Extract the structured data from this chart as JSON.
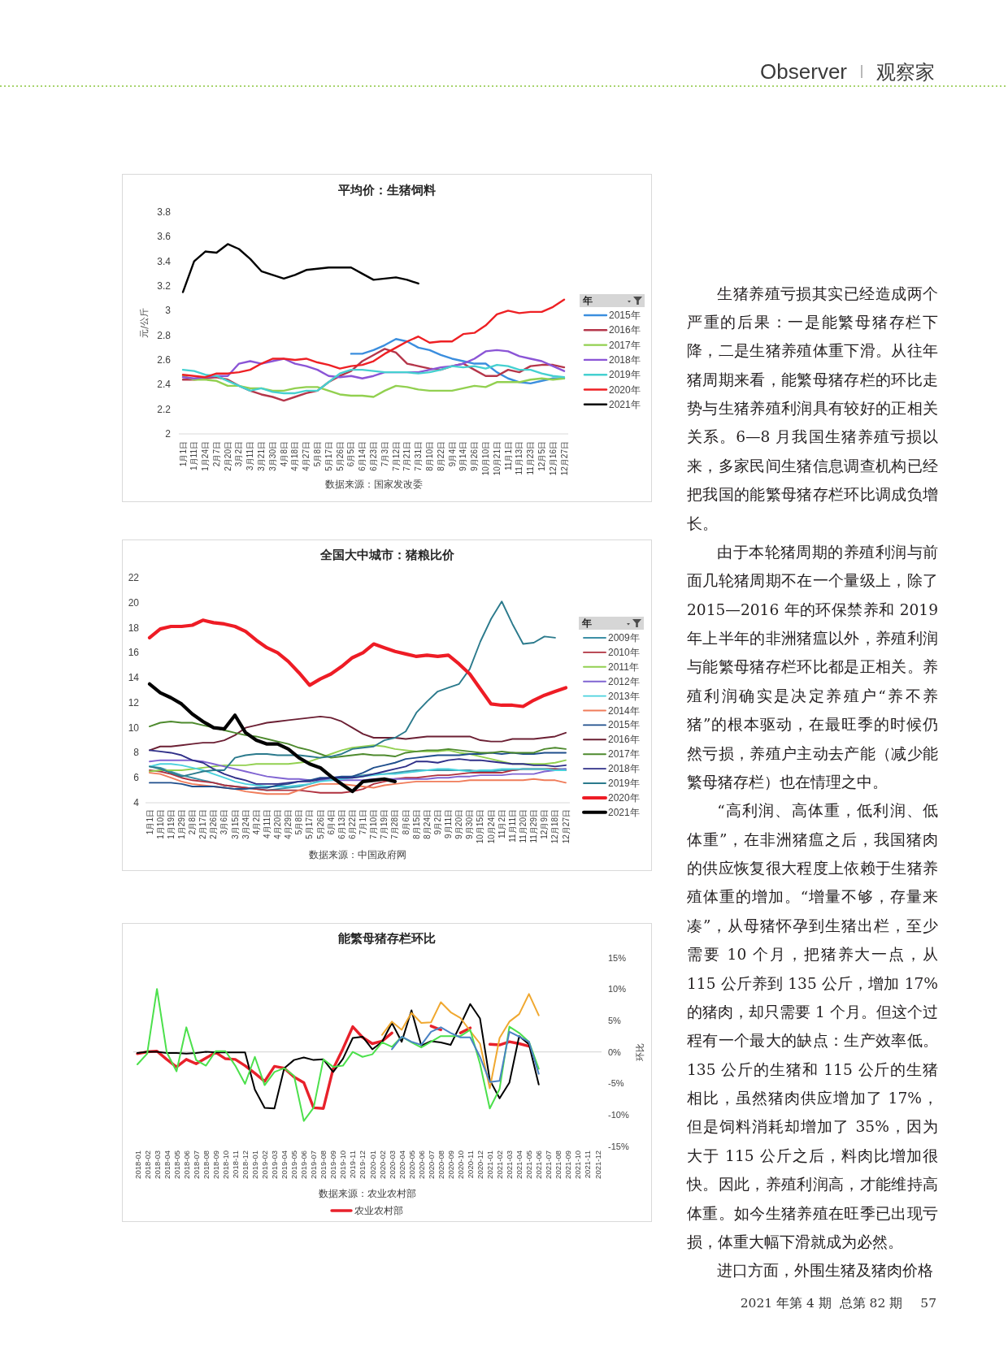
{
  "chart_data": [
    {
      "type": "other",
      "annotations": [
        "Observer",
        "观察家"
      ]
    },
    {
      "type": "line",
      "title": "平均价：生猪饲料",
      "ylabel": "元/公斤",
      "legend_title": "年",
      "legend": "right",
      "ylim": [
        2,
        3.8
      ],
      "yticks": [
        2,
        2.2,
        2.4,
        2.6,
        2.8,
        3,
        3.2,
        3.4,
        3.6,
        3.8
      ],
      "categories": [
        "1月1日",
        "1月11日",
        "1月24日",
        "2月7日",
        "2月20日",
        "3月2日",
        "3月11日",
        "3月21日",
        "3月30日",
        "4月8日",
        "4月18日",
        "4月27日",
        "5月8日",
        "5月17日",
        "5月26日",
        "6月5日",
        "6月14日",
        "6月23日",
        "7月3日",
        "7月12日",
        "7月21日",
        "7月31日",
        "8月10日",
        "8月22日",
        "9月4日",
        "9月14日",
        "9月26日",
        "10月10日",
        "10月21日",
        "11月1日",
        "11月13日",
        "11月23日",
        "12月5日",
        "12月16日",
        "12月27日"
      ],
      "series": [
        {
          "name": "2015年",
          "color": "#3b8ede",
          "values": [
            null,
            null,
            null,
            null,
            null,
            null,
            null,
            null,
            null,
            null,
            null,
            null,
            null,
            null,
            null,
            2.65,
            2.65,
            2.68,
            2.72,
            2.77,
            2.75,
            2.7,
            2.68,
            2.64,
            2.61,
            2.59,
            2.57,
            2.57,
            2.5,
            2.45,
            2.42,
            2.41,
            2.43,
            2.45,
            2.45
          ]
        },
        {
          "name": "2016年",
          "color": "#b5364a",
          "values": [
            2.44,
            2.44,
            2.45,
            2.46,
            2.44,
            2.39,
            2.35,
            2.32,
            2.3,
            2.27,
            2.3,
            2.33,
            2.35,
            2.42,
            2.47,
            2.51,
            2.59,
            2.64,
            2.69,
            2.66,
            2.57,
            2.55,
            2.53,
            2.52,
            2.55,
            2.57,
            2.52,
            2.47,
            2.47,
            2.52,
            2.5,
            2.55,
            2.56,
            2.56,
            2.54
          ]
        },
        {
          "name": "2017年",
          "color": "#92d050",
          "values": [
            2.47,
            2.44,
            2.44,
            2.43,
            2.39,
            2.39,
            2.37,
            2.37,
            2.35,
            2.35,
            2.37,
            2.38,
            2.38,
            2.35,
            2.32,
            2.31,
            2.31,
            2.3,
            2.35,
            2.39,
            2.38,
            2.36,
            2.35,
            2.35,
            2.35,
            2.37,
            2.39,
            2.38,
            2.42,
            2.42,
            2.42,
            2.44,
            2.45,
            2.44,
            2.45
          ]
        },
        {
          "name": "2018年",
          "color": "#8b55d6",
          "values": [
            2.46,
            2.45,
            2.46,
            2.47,
            2.47,
            2.57,
            2.59,
            2.57,
            2.59,
            2.61,
            2.57,
            2.55,
            2.52,
            2.47,
            2.46,
            2.47,
            2.45,
            2.47,
            2.5,
            2.5,
            2.5,
            2.5,
            2.52,
            2.54,
            2.55,
            2.57,
            2.61,
            2.67,
            2.68,
            2.67,
            2.63,
            2.61,
            2.59,
            2.55,
            2.51
          ]
        },
        {
          "name": "2019年",
          "color": "#45d0d0",
          "values": [
            2.52,
            2.51,
            2.48,
            2.47,
            2.43,
            2.39,
            2.35,
            2.37,
            2.34,
            2.33,
            2.33,
            2.35,
            2.35,
            2.42,
            2.49,
            2.52,
            2.52,
            2.51,
            2.5,
            2.5,
            2.5,
            2.49,
            2.5,
            2.52,
            2.55,
            2.54,
            2.55,
            2.53,
            2.56,
            2.55,
            2.52,
            2.52,
            2.49,
            2.47,
            2.46
          ]
        },
        {
          "name": "2020年",
          "color": "#ee2024",
          "values": [
            2.48,
            2.47,
            2.46,
            2.49,
            2.49,
            2.5,
            2.52,
            2.57,
            2.61,
            2.61,
            2.6,
            2.61,
            2.58,
            2.56,
            2.53,
            2.55,
            2.56,
            2.59,
            2.65,
            2.7,
            2.75,
            2.79,
            2.74,
            2.75,
            2.75,
            2.81,
            2.82,
            2.88,
            2.97,
            3.0,
            2.98,
            2.99,
            2.99,
            3.03,
            3.09
          ]
        },
        {
          "name": "2021年",
          "color": "#000000",
          "values": [
            3.15,
            3.4,
            3.48,
            3.47,
            3.54,
            3.5,
            3.42,
            3.32,
            3.29,
            3.26,
            3.29,
            3.33,
            3.34,
            3.35,
            3.35,
            3.35,
            3.3,
            3.25,
            3.26,
            3.27,
            3.25,
            3.22,
            null,
            null,
            null,
            null,
            null,
            null,
            null,
            null,
            null,
            null,
            null,
            null,
            null
          ]
        }
      ],
      "annotations": [
        "数据来源：国家发改委"
      ]
    },
    {
      "type": "line",
      "title": "全国大中城市：猪粮比价",
      "legend_title": "年",
      "legend": "right",
      "ylim": [
        4,
        22
      ],
      "yticks": [
        4,
        6,
        8,
        10,
        12,
        14,
        16,
        18,
        20,
        22
      ],
      "categories": [
        "1月1日",
        "1月10日",
        "1月19日",
        "1月29日",
        "2月8日",
        "2月17日",
        "2月26日",
        "3月6日",
        "3月15日",
        "3月24日",
        "4月2日",
        "4月11日",
        "4月20日",
        "4月29日",
        "5月8日",
        "5月17日",
        "5月26日",
        "6月4日",
        "6月13日",
        "6月22日",
        "7月1日",
        "7月10日",
        "7月19日",
        "7月28日",
        "8月6日",
        "8月15日",
        "8月24日",
        "9月2日",
        "9月11日",
        "9月20日",
        "9月30日",
        "10月15日",
        "10月24日",
        "11月2日",
        "11月11日",
        "11月20日",
        "11月29日",
        "12月9日",
        "12月18日",
        "12月27日"
      ],
      "series": [
        {
          "name": "2009年",
          "color": "#3d8fa6",
          "values": [
            6.9,
            6.8,
            6.5,
            6.2,
            6.0,
            5.8,
            5.6,
            5.4,
            5.3,
            5.2,
            5.1,
            5.0,
            5.1,
            5.2,
            5.3,
            5.5,
            5.8,
            6.0,
            6.0,
            6.1,
            6.2,
            6.3,
            6.3,
            6.4,
            6.5,
            6.6,
            6.6,
            6.6,
            6.6,
            6.6,
            6.6,
            6.5,
            6.5,
            6.6,
            6.6,
            6.7,
            6.7,
            6.7,
            6.7,
            6.7
          ]
        },
        {
          "name": "2010年",
          "color": "#b0303e",
          "values": [
            6.6,
            6.5,
            6.3,
            6.0,
            5.8,
            5.7,
            5.6,
            5.4,
            5.3,
            5.2,
            5.1,
            5.0,
            5.0,
            5.0,
            5.0,
            4.9,
            4.8,
            4.8,
            4.8,
            4.9,
            5.1,
            5.5,
            5.7,
            5.9,
            6.0,
            6.0,
            6.1,
            6.2,
            6.2,
            6.3,
            6.4,
            6.4,
            6.4,
            6.4,
            6.6,
            6.7,
            6.7,
            6.7,
            6.7,
            6.6
          ]
        },
        {
          "name": "2011年",
          "color": "#92d050",
          "values": [
            6.5,
            6.6,
            6.6,
            6.6,
            6.7,
            6.8,
            6.9,
            7.0,
            7.0,
            7.0,
            7.1,
            7.1,
            7.1,
            7.1,
            7.2,
            7.3,
            7.6,
            7.9,
            8.2,
            8.4,
            8.5,
            8.6,
            8.5,
            8.3,
            8.2,
            8.1,
            8.1,
            8.1,
            8.2,
            8.0,
            7.9,
            7.7,
            7.5,
            7.3,
            7.1,
            7.1,
            7.1,
            7.1,
            7.2,
            7.4
          ]
        },
        {
          "name": "2012年",
          "color": "#8064d2",
          "values": [
            7.3,
            7.4,
            7.4,
            7.4,
            7.4,
            7.3,
            7.1,
            6.9,
            6.7,
            6.5,
            6.3,
            6.1,
            6.0,
            5.9,
            5.9,
            5.8,
            5.8,
            5.8,
            5.8,
            5.8,
            5.8,
            5.9,
            5.9,
            5.9,
            5.9,
            5.9,
            5.9,
            6.0,
            6.0,
            6.1,
            6.1,
            6.2,
            6.2,
            6.2,
            6.3,
            6.3,
            6.3,
            6.5,
            6.6,
            6.7
          ]
        },
        {
          "name": "2013年",
          "color": "#4bd1dd",
          "values": [
            6.9,
            7.1,
            7.1,
            7.0,
            6.8,
            6.6,
            6.3,
            6.0,
            5.7,
            5.5,
            5.4,
            5.3,
            5.3,
            5.3,
            5.4,
            5.5,
            5.7,
            5.8,
            5.9,
            6.0,
            6.1,
            6.2,
            6.3,
            6.3,
            6.4,
            6.5,
            6.6,
            6.7,
            6.7,
            6.6,
            6.5,
            6.6,
            6.6,
            6.7,
            6.7,
            6.7,
            6.7,
            6.7,
            6.6,
            6.6
          ]
        },
        {
          "name": "2014年",
          "color": "#f07c5a",
          "values": [
            6.4,
            6.3,
            6.0,
            5.7,
            5.5,
            5.4,
            5.3,
            5.2,
            5.1,
            4.9,
            4.8,
            4.7,
            4.7,
            4.7,
            5.0,
            5.3,
            5.5,
            5.5,
            5.5,
            5.4,
            5.3,
            5.2,
            5.4,
            5.5,
            5.6,
            5.7,
            5.7,
            5.7,
            5.7,
            5.7,
            5.8,
            5.8,
            5.8,
            5.8,
            5.8,
            5.8,
            5.9,
            5.8,
            5.8,
            5.6
          ]
        },
        {
          "name": "2015年",
          "color": "#1f4e8c",
          "values": [
            5.6,
            5.6,
            5.6,
            5.5,
            5.3,
            5.3,
            5.3,
            5.2,
            5.1,
            5.1,
            5.2,
            5.2,
            5.4,
            5.5,
            5.7,
            5.8,
            6.0,
            6.0,
            6.1,
            6.1,
            6.4,
            6.8,
            7.0,
            7.2,
            7.5,
            7.6,
            7.7,
            7.8,
            7.8,
            7.8,
            7.9,
            7.9,
            8.0,
            7.9,
            8.0,
            7.9,
            7.9,
            8.0,
            8.0,
            8.0
          ]
        },
        {
          "name": "2016年",
          "color": "#6b1f33",
          "values": [
            8.2,
            8.5,
            8.5,
            8.6,
            8.7,
            8.8,
            8.8,
            9.0,
            9.4,
            10.0,
            10.2,
            10.4,
            10.5,
            10.6,
            10.7,
            10.8,
            10.9,
            10.8,
            10.5,
            10.0,
            9.5,
            9.2,
            9.2,
            9.2,
            9.1,
            9.2,
            9.3,
            9.3,
            9.3,
            9.3,
            9.3,
            9.0,
            8.9,
            8.9,
            9.1,
            9.1,
            9.1,
            9.2,
            9.3,
            9.6
          ]
        },
        {
          "name": "2017年",
          "color": "#4e8a2e",
          "values": [
            10.1,
            10.4,
            10.5,
            10.4,
            10.4,
            10.2,
            10.0,
            9.8,
            9.6,
            9.4,
            9.3,
            9.1,
            8.9,
            8.7,
            8.4,
            8.2,
            7.9,
            7.6,
            7.7,
            7.8,
            7.9,
            7.8,
            7.8,
            7.7,
            8.0,
            8.1,
            8.2,
            8.2,
            8.3,
            8.2,
            8.1,
            8.0,
            8.0,
            8.1,
            8.0,
            8.0,
            8.0,
            8.3,
            8.4,
            8.3
          ]
        },
        {
          "name": "2018年",
          "color": "#2f2f88",
          "values": [
            8.2,
            8.1,
            8.0,
            7.8,
            7.4,
            7.2,
            6.7,
            6.3,
            6.0,
            5.8,
            5.5,
            5.5,
            5.5,
            5.6,
            5.7,
            5.7,
            5.9,
            6.0,
            6.0,
            6.0,
            6.1,
            6.3,
            6.5,
            6.7,
            6.9,
            7.3,
            7.3,
            7.2,
            7.4,
            7.5,
            7.4,
            7.4,
            7.3,
            7.2,
            7.1,
            7.1,
            7.0,
            7.0,
            6.9,
            7.0
          ]
        },
        {
          "name": "2019年",
          "color": "#2b7a8c",
          "values": [
            6.9,
            6.7,
            6.4,
            6.1,
            6.3,
            6.5,
            6.6,
            6.6,
            7.6,
            7.8,
            7.9,
            7.9,
            7.8,
            7.8,
            7.8,
            7.7,
            7.6,
            7.7,
            7.9,
            8.3,
            8.4,
            8.5,
            9.0,
            9.2,
            9.7,
            11.2,
            12.1,
            12.9,
            13.2,
            13.5,
            14.7,
            16.9,
            18.7,
            20.1,
            18.3,
            16.7,
            16.8,
            17.3,
            17.2,
            null
          ]
        },
        {
          "name": "2020年",
          "color": "#ee1c25",
          "values": [
            17.2,
            17.9,
            18.1,
            18.1,
            18.2,
            18.6,
            18.4,
            18.3,
            18.1,
            17.7,
            17.0,
            16.4,
            16.0,
            15.3,
            14.4,
            13.4,
            13.9,
            14.3,
            14.9,
            15.6,
            16.0,
            16.7,
            16.4,
            16.1,
            15.9,
            15.7,
            15.8,
            15.7,
            15.8,
            15.1,
            14.3,
            13.1,
            11.9,
            11.8,
            11.8,
            11.7,
            12.2,
            12.6,
            12.9,
            13.2
          ]
        },
        {
          "name": "2021年",
          "color": "#000000",
          "values": [
            13.5,
            12.8,
            12.4,
            11.9,
            11.1,
            10.5,
            10.0,
            9.9,
            11.0,
            9.6,
            9.0,
            8.7,
            8.7,
            8.3,
            7.6,
            7.1,
            6.8,
            6.1,
            5.5,
            4.9,
            5.7,
            5.8,
            5.9,
            5.7,
            null,
            null,
            null,
            null,
            null,
            null,
            null,
            null,
            null,
            null,
            null,
            null,
            null,
            null,
            null,
            null
          ]
        }
      ],
      "annotations": [
        "数据来源：中国政府网"
      ]
    },
    {
      "type": "line",
      "title": "能繁母猪存栏环比",
      "y2label": "环比",
      "legend": "bottom",
      "y2lim": [
        -15,
        15
      ],
      "y2ticks": [
        {
          "value": -15,
          "label": "-15%"
        },
        {
          "value": -10,
          "label": "-10%"
        },
        {
          "value": -5,
          "label": "-5%"
        },
        {
          "value": 0,
          "label": "0%"
        },
        {
          "value": 5,
          "label": "5%"
        },
        {
          "value": 10,
          "label": "10%"
        },
        {
          "value": 15,
          "label": "15%"
        }
      ],
      "categories": [
        "2018-01",
        "2018-02",
        "2018-03",
        "2018-04",
        "2018-05",
        "2018-06",
        "2018-07",
        "2018-08",
        "2018-09",
        "2018-10",
        "2018-11",
        "2018-12",
        "2019-01",
        "2019-02",
        "2019-03",
        "2019-04",
        "2019-05",
        "2019-06",
        "2019-07",
        "2019-08",
        "2019-09",
        "2019-10",
        "2019-11",
        "2019-12",
        "2020-01",
        "2020-02",
        "2020-03",
        "2020-04",
        "2020-05",
        "2020-06",
        "2020-07",
        "2020-08",
        "2020-09",
        "2020-10",
        "2020-11",
        "2020-12",
        "2021-01",
        "2021-02",
        "2021-03",
        "2021-04",
        "2021-05",
        "2021-06",
        "2021-07",
        "2021-08",
        "2021-09",
        "2021-10",
        "2021-11",
        "2021-12"
      ],
      "series": [
        {
          "name": "农业农村部",
          "color": "#e8212b",
          "axis": "y2",
          "values": [
            -0.3,
            0,
            0.1,
            -1.2,
            -2.4,
            -1.2,
            -1.9,
            -1.0,
            -0.1,
            -1.1,
            -1.2,
            -2.2,
            -3.4,
            -4.7,
            -2.3,
            -2.6,
            -4.0,
            -4.9,
            -8.9,
            -9.0,
            -2.7,
            0.5,
            4.0,
            2.3,
            1.3,
            1.7,
            3.0,
            null,
            null,
            null,
            4.1,
            3.5,
            null,
            3.0,
            3.8,
            null,
            1.2,
            1.1,
            1.6,
            1.3,
            0.9,
            null,
            null,
            null,
            null,
            null,
            null,
            null
          ]
        },
        {
          "color": "#000000",
          "axis": "y2",
          "values": [
            -0.2,
            0,
            0,
            -0.2,
            -0.2,
            -0.3,
            -0.2,
            0,
            -0.1,
            -0.1,
            -0.1,
            -0.1,
            -6.0,
            -8.9,
            -9.0,
            -2.6,
            -1.3,
            -0.9,
            -1.3,
            -1.2,
            -3.2,
            -1.1,
            2.2,
            2.4,
            0.4,
            1.6,
            4.6,
            1.6,
            6.6,
            1.0,
            1.7,
            1.5,
            1.1,
            4.3,
            7.6,
            5.3,
            -4.5,
            -7.4,
            -4.9,
            2.5,
            1.2,
            -5.2,
            null,
            null,
            null,
            null,
            null,
            null
          ]
        },
        {
          "color": "#f0a830",
          "axis": "y2",
          "values": [
            null,
            null,
            null,
            null,
            null,
            null,
            null,
            null,
            null,
            null,
            null,
            null,
            null,
            null,
            null,
            null,
            null,
            null,
            null,
            null,
            null,
            null,
            null,
            null,
            null,
            2.7,
            4.8,
            3.5,
            6.2,
            4.6,
            4.7,
            7.9,
            6.3,
            5.4,
            3.3,
            1.3,
            -5.8,
            2.2,
            4.8,
            6.0,
            9.2,
            5.8,
            null,
            null,
            null,
            null,
            null,
            null
          ]
        },
        {
          "color": "#4ce04c",
          "axis": "y2",
          "values": [
            -2.0,
            -0.3,
            10.0,
            -0.1,
            -3.1,
            3.9,
            -1.3,
            -2.2,
            0.1,
            0.1,
            -2.2,
            -5.1,
            -0.8,
            -5.3,
            -3.2,
            -2.6,
            -3.8,
            -11.0,
            -8.9,
            -1.2,
            -2.4,
            -2.2,
            0.0,
            -0.8,
            -0.4,
            1.5,
            0.8,
            2.4,
            1.5,
            0.7,
            1.6,
            2.5,
            2.5,
            2.5,
            3.5,
            -1.9,
            -9.0,
            -5.9,
            4.0,
            3.0,
            1.6,
            -2.7,
            null,
            null,
            null,
            null,
            null,
            null
          ]
        },
        {
          "color": "#4a82c4",
          "axis": "y2",
          "values": [
            null,
            null,
            null,
            null,
            null,
            null,
            null,
            null,
            null,
            null,
            null,
            null,
            null,
            null,
            null,
            null,
            null,
            null,
            null,
            null,
            null,
            null,
            null,
            null,
            null,
            null,
            0.4,
            2.4,
            1.6,
            1.1,
            3.2,
            3.9,
            3.0,
            2.3,
            2.3,
            -0.8,
            -4.8,
            -4.6,
            3.2,
            2.4,
            1.6,
            -3.5,
            null,
            null,
            null,
            null,
            null,
            null
          ]
        }
      ],
      "annotations": [
        "数据来源：农业农村部"
      ]
    },
    {
      "type": "other",
      "annotations": [
        "生猪养殖亏损其实已经造成两个严重的后果：一是能繁母猪存栏下降，二是生猪养殖体重下滑。从往年猪周期来看，能繁母猪存栏的环比走势与生猪养殖利润具有较好的正相关关系。6—8 月我国生猪养殖亏损以来，多家民间生猪信息调查机构已经把我国的能繁母猪存栏环比调成负增长。",
        "由于本轮猪周期的养殖利润与前面几轮猪周期不在一个量级上，除了 2015—2016 年的环保禁养和 2019 年上半年的非洲猪瘟以外，养殖利润与能繁母猪存栏环比都是正相关。养殖利润确实是决定养殖户“养不养猪”的根本驱动，在最旺季的时候仍然亏损，养殖户主动去产能（减少能繁母猪存栏）也在情理之中。",
        "“高利润、高体重，低利润、低体重”，在非洲猪瘟之后，我国猪肉的供应恢复很大程度上依赖于生猪养殖体重的增加。“增量不够，存量来凑”，从母猪怀孕到生猪出栏，至少需要 10 个月，把猪养大一点，从 115 公斤养到 135 公斤，增加 17% 的猪肉，却只需要 1 个月。但这个过程有一个最大的缺点：生产效率低。135 公斤的生猪和 115 公斤的生猪相比，虽然猪肉供应增加了 17%，但是饲料消耗却增加了 35%，因为大于 115 公斤之后，料肉比增加很快。因此，养殖利润高，才能维持高体重。如今生猪养殖在旺季已出现亏损，体重大幅下滑就成为必然。",
        "进口方面，外围生猪及猪肉价格"
      ]
    },
    {
      "type": "other",
      "annotations": [
        "2021 年第 4 期  总第 82 期",
        "57"
      ]
    }
  ]
}
